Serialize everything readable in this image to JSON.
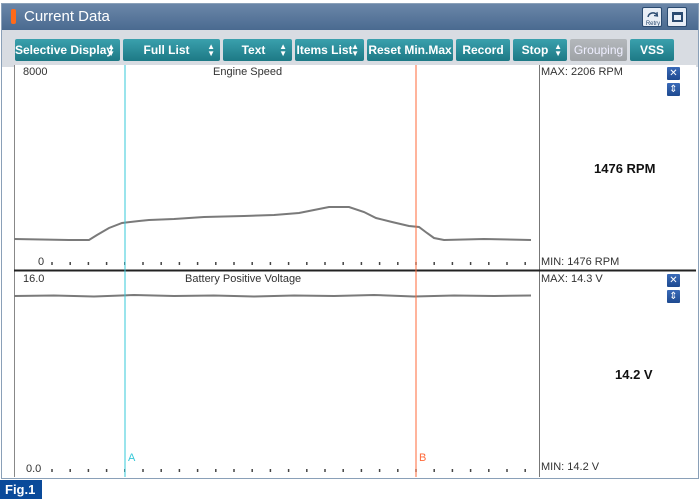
{
  "window": {
    "title": "Current Data",
    "retry_label": "Retry"
  },
  "toolbar": {
    "buttons": [
      {
        "label": "Selective Display",
        "dropdown": true
      },
      {
        "label": "Full List",
        "dropdown": true
      },
      {
        "label": "Text",
        "dropdown": true
      },
      {
        "label": "Items List",
        "dropdown": true
      },
      {
        "label": "Reset Min.Max",
        "dropdown": false
      },
      {
        "label": "Record",
        "dropdown": false
      },
      {
        "label": "Stop",
        "dropdown": true
      },
      {
        "label": "Grouping",
        "dropdown": false,
        "disabled": true
      },
      {
        "label": "VSS",
        "dropdown": false
      }
    ]
  },
  "cursors": {
    "a_label": "A",
    "b_label": "B",
    "a_color": "#36c8d8",
    "b_color": "#ff6a3a"
  },
  "graphs": [
    {
      "name": "Engine Speed",
      "y_max_label": "8000",
      "y_min_label": "0",
      "max_text": "MAX:  2206 RPM",
      "min_text": "MIN:  1476 RPM",
      "current_value": "1476 RPM"
    },
    {
      "name": "Battery Positive Voltage",
      "y_max_label": "16.0",
      "y_min_label": "0.0",
      "max_text": "MAX:  14.3 V",
      "min_text": "MIN:  14.2 V",
      "current_value": "14.2 V"
    }
  ],
  "figure_label": "Fig.1",
  "icons": {
    "close": "close-icon",
    "expand": "expand-icon",
    "retry": "retry-icon",
    "window": "window-icon"
  }
}
